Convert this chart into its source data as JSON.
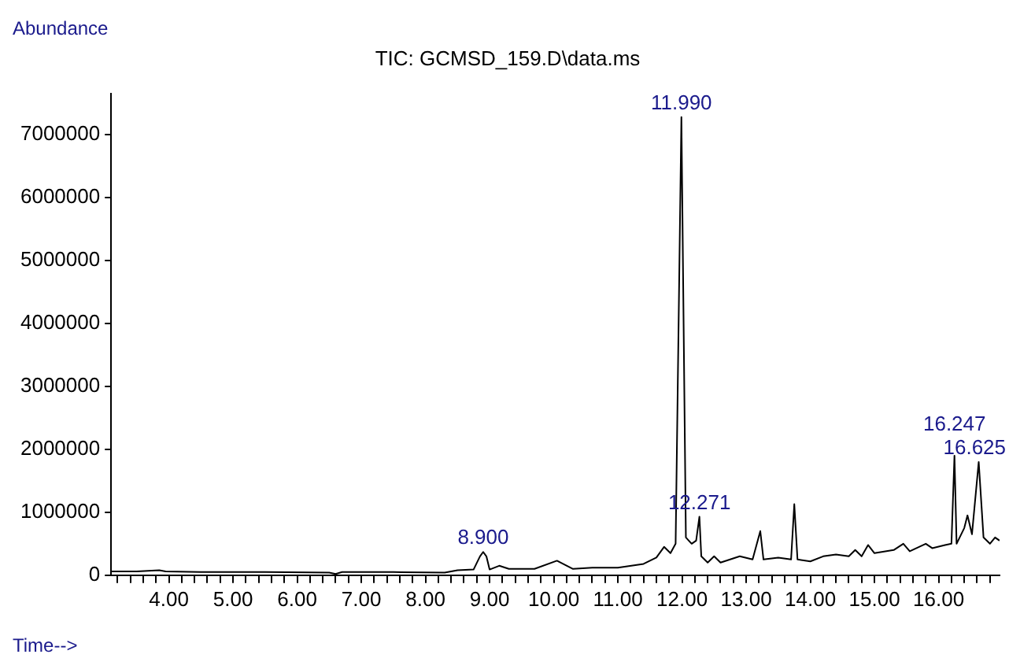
{
  "chart_data": {
    "type": "line",
    "title": "TIC: GCMSD_159.D\\data.ms",
    "xlabel": "Time-->",
    "ylabel": "Abundance",
    "x": [
      3.1,
      3.5,
      3.85,
      3.95,
      4.5,
      5.5,
      6.5,
      6.6,
      6.7,
      7.5,
      8.3,
      8.5,
      8.75,
      8.85,
      8.9,
      8.95,
      9.0,
      9.15,
      9.3,
      9.7,
      10.05,
      10.3,
      10.6,
      11.0,
      11.4,
      11.6,
      11.72,
      11.82,
      11.9,
      11.99,
      12.06,
      12.15,
      12.22,
      12.271,
      12.3,
      12.4,
      12.5,
      12.6,
      12.9,
      13.1,
      13.22,
      13.27,
      13.5,
      13.7,
      13.75,
      13.8,
      14.0,
      14.2,
      14.4,
      14.6,
      14.7,
      14.8,
      14.9,
      15.0,
      15.3,
      15.45,
      15.55,
      15.8,
      15.9,
      16.1,
      16.2,
      16.247,
      16.28,
      16.4,
      16.45,
      16.52,
      16.625,
      16.7,
      16.8,
      16.88,
      16.95
    ],
    "series": [
      {
        "color": "#000000",
        "values": [
          60000,
          60000,
          80000,
          60000,
          50000,
          50000,
          40000,
          20000,
          50000,
          50000,
          40000,
          80000,
          90000,
          300000,
          370000,
          300000,
          90000,
          150000,
          100000,
          100000,
          230000,
          100000,
          120000,
          120000,
          180000,
          280000,
          450000,
          350000,
          500000,
          7280000,
          600000,
          500000,
          550000,
          930000,
          300000,
          200000,
          300000,
          200000,
          300000,
          250000,
          700000,
          250000,
          280000,
          250000,
          1130000,
          250000,
          220000,
          300000,
          330000,
          300000,
          400000,
          300000,
          480000,
          350000,
          400000,
          500000,
          380000,
          500000,
          430000,
          480000,
          500000,
          1900000,
          500000,
          750000,
          950000,
          650000,
          1800000,
          600000,
          500000,
          600000,
          550000
        ]
      }
    ],
    "xlim": [
      3.1,
      16.95
    ],
    "ylim": [
      0,
      7650000
    ],
    "xticks": [
      {
        "value": 3.2,
        "label": null
      },
      {
        "value": 3.4,
        "label": null
      },
      {
        "value": 3.6,
        "label": null
      },
      {
        "value": 3.8,
        "label": null
      },
      {
        "value": 4,
        "label": "4.00"
      },
      {
        "value": 4.2,
        "label": null
      },
      {
        "value": 4.4,
        "label": null
      },
      {
        "value": 4.6,
        "label": null
      },
      {
        "value": 4.8,
        "label": null
      },
      {
        "value": 5,
        "label": "5.00"
      },
      {
        "value": 5.2,
        "label": null
      },
      {
        "value": 5.4,
        "label": null
      },
      {
        "value": 5.6,
        "label": null
      },
      {
        "value": 5.8,
        "label": null
      },
      {
        "value": 6,
        "label": "6.00"
      },
      {
        "value": 6.2,
        "label": null
      },
      {
        "value": 6.4,
        "label": null
      },
      {
        "value": 6.6,
        "label": null
      },
      {
        "value": 6.8,
        "label": null
      },
      {
        "value": 7,
        "label": "7.00"
      },
      {
        "value": 7.2,
        "label": null
      },
      {
        "value": 7.4,
        "label": null
      },
      {
        "value": 7.6,
        "label": null
      },
      {
        "value": 7.8,
        "label": null
      },
      {
        "value": 8,
        "label": "8.00"
      },
      {
        "value": 8.2,
        "label": null
      },
      {
        "value": 8.4,
        "label": null
      },
      {
        "value": 8.6,
        "label": null
      },
      {
        "value": 8.8,
        "label": null
      },
      {
        "value": 9,
        "label": "9.00"
      },
      {
        "value": 9.2,
        "label": null
      },
      {
        "value": 9.4,
        "label": null
      },
      {
        "value": 9.6,
        "label": null
      },
      {
        "value": 9.8,
        "label": null
      },
      {
        "value": 10,
        "label": "10.00"
      },
      {
        "value": 10.2,
        "label": null
      },
      {
        "value": 10.4,
        "label": null
      },
      {
        "value": 10.6,
        "label": null
      },
      {
        "value": 10.8,
        "label": null
      },
      {
        "value": 11,
        "label": "11.00"
      },
      {
        "value": 11.2,
        "label": null
      },
      {
        "value": 11.4,
        "label": null
      },
      {
        "value": 11.6,
        "label": null
      },
      {
        "value": 11.8,
        "label": null
      },
      {
        "value": 12,
        "label": "12.00"
      },
      {
        "value": 12.2,
        "label": null
      },
      {
        "value": 12.4,
        "label": null
      },
      {
        "value": 12.6,
        "label": null
      },
      {
        "value": 12.8,
        "label": null
      },
      {
        "value": 13,
        "label": "13.00"
      },
      {
        "value": 13.2,
        "label": null
      },
      {
        "value": 13.4,
        "label": null
      },
      {
        "value": 13.6,
        "label": null
      },
      {
        "value": 13.8,
        "label": null
      },
      {
        "value": 14,
        "label": "14.00"
      },
      {
        "value": 14.2,
        "label": null
      },
      {
        "value": 14.4,
        "label": null
      },
      {
        "value": 14.6,
        "label": null
      },
      {
        "value": 14.8,
        "label": null
      },
      {
        "value": 15,
        "label": "15.00"
      },
      {
        "value": 15.2,
        "label": null
      },
      {
        "value": 15.4,
        "label": null
      },
      {
        "value": 15.6,
        "label": null
      },
      {
        "value": 15.8,
        "label": null
      },
      {
        "value": 16,
        "label": "16.00"
      },
      {
        "value": 16.2,
        "label": null
      },
      {
        "value": 16.4,
        "label": null
      },
      {
        "value": 16.6,
        "label": null
      },
      {
        "value": 16.8,
        "label": null
      }
    ],
    "yticks": [
      0,
      1000000,
      2000000,
      3000000,
      4000000,
      5000000,
      6000000,
      7000000
    ],
    "annotations": [
      {
        "text": "11.990",
        "x": 11.99,
        "y": 7280000
      },
      {
        "text": "8.900",
        "x": 8.9,
        "y": 370000
      },
      {
        "text": "12.271",
        "x": 12.271,
        "y": 930000
      },
      {
        "text": "16.247",
        "x": 16.247,
        "y": 1900000
      },
      {
        "text": "16.625",
        "x": 16.625,
        "y": 1800000
      }
    ],
    "grid": false,
    "legend": false,
    "marker": "none",
    "line_style": "solid"
  }
}
